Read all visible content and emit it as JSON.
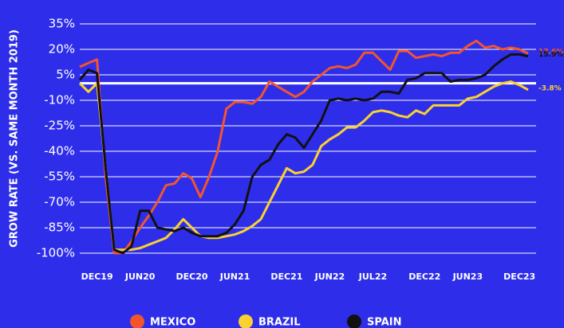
{
  "chart_data": {
    "type": "line",
    "y_label": "GROW RATE (VS. SAME MONTH 2019)",
    "categories": [
      null,
      null,
      "DEC19",
      null,
      null,
      null,
      null,
      "JUN20",
      null,
      null,
      null,
      null,
      null,
      "DEC20",
      null,
      null,
      null,
      null,
      "JUN21",
      null,
      null,
      null,
      null,
      null,
      "DEC21",
      null,
      null,
      null,
      null,
      "JUN22",
      null,
      null,
      null,
      null,
      "JUL22",
      null,
      null,
      null,
      null,
      null,
      "DEC22",
      null,
      null,
      null,
      null,
      "JUN23",
      null,
      null,
      null,
      null,
      null,
      "DEC23",
      null
    ],
    "series": [
      {
        "name": "MEXICO",
        "color": "#f2552c",
        "values": [
          9.7,
          12,
          14,
          -55,
          -100,
          -100,
          -93,
          -85,
          -78,
          -70,
          -60,
          -59,
          -53,
          -56,
          -67,
          -55,
          -40,
          -15,
          -11,
          -11,
          -12,
          -8,
          1,
          -2,
          -5,
          -8,
          -5,
          1,
          5,
          9,
          10,
          9,
          11,
          18,
          18,
          13,
          8,
          19,
          19,
          15,
          16,
          17,
          16,
          18,
          18,
          22,
          25,
          21,
          22,
          20,
          21,
          20,
          17.6
        ],
        "value_labels": [
          null,
          null,
          null,
          null,
          null,
          null,
          null,
          null,
          null,
          null,
          null,
          null,
          null,
          null,
          null,
          null,
          null,
          null,
          null,
          null,
          null,
          null,
          null,
          null,
          null,
          null,
          null,
          null,
          null,
          null,
          null,
          null,
          null,
          null,
          null,
          null,
          null,
          null,
          null,
          null,
          null,
          null,
          null,
          null,
          null,
          null,
          null,
          null,
          null,
          null,
          null,
          null,
          "17.6%"
        ]
      },
      {
        "name": "BRAZIL",
        "color": "#fbd12f",
        "values": [
          0,
          -5,
          0,
          -50,
          -98,
          -98,
          -98,
          -97,
          -95,
          -93,
          -91,
          -86,
          -80,
          -85,
          -90,
          -91,
          -91,
          -90,
          -89,
          -87,
          -84,
          -80,
          -70,
          -60,
          -50,
          -53,
          -52,
          -48,
          -37,
          -33,
          -30,
          -26,
          -26,
          -22,
          -17,
          -16,
          -17,
          -19,
          -20,
          -16,
          -18,
          -13,
          -13,
          -13,
          -13,
          -9,
          -8,
          -5,
          -2,
          0,
          1,
          -1,
          -3.8
        ],
        "value_labels": [
          null,
          null,
          null,
          null,
          null,
          null,
          null,
          null,
          null,
          null,
          null,
          null,
          null,
          null,
          null,
          null,
          null,
          null,
          null,
          null,
          null,
          null,
          null,
          null,
          null,
          null,
          null,
          null,
          null,
          null,
          null,
          null,
          null,
          null,
          null,
          null,
          null,
          null,
          null,
          null,
          null,
          null,
          null,
          null,
          null,
          null,
          null,
          null,
          null,
          null,
          null,
          null,
          "-3.8%"
        ]
      },
      {
        "name": "SPAIN",
        "color": "#111111",
        "values": [
          2,
          8,
          6,
          -50,
          -98,
          -100,
          -96,
          -75,
          -75,
          -85,
          -86,
          -87,
          -85,
          -88,
          -90,
          -90,
          -90,
          -88,
          -83,
          -75,
          -55,
          -48,
          -45,
          -36,
          -30,
          -32,
          -38,
          -30,
          -22,
          -10,
          -9,
          -10,
          -9,
          -10,
          -9,
          -5,
          -5,
          -6,
          2,
          3,
          6,
          6,
          6,
          1,
          2,
          2,
          3,
          5,
          10,
          14,
          17,
          17,
          15.9
        ],
        "value_labels": [
          null,
          null,
          null,
          null,
          null,
          null,
          null,
          null,
          null,
          null,
          null,
          null,
          null,
          null,
          null,
          null,
          null,
          null,
          null,
          null,
          null,
          null,
          null,
          null,
          null,
          null,
          null,
          null,
          null,
          null,
          null,
          null,
          null,
          null,
          null,
          null,
          null,
          null,
          null,
          null,
          null,
          null,
          null,
          null,
          null,
          null,
          null,
          null,
          null,
          null,
          null,
          null,
          "15.9%"
        ]
      }
    ],
    "ylim": [
      -100,
      35
    ],
    "yticks": [
      {
        "value": 35,
        "label": "35%"
      },
      {
        "value": 20,
        "label": "20%"
      },
      {
        "value": 5,
        "label": "5%"
      },
      {
        "value": -10,
        "label": "-10%"
      },
      {
        "value": -25,
        "label": "-25%"
      },
      {
        "value": -40,
        "label": "-40%"
      },
      {
        "value": -55,
        "label": "-55%"
      },
      {
        "value": -70,
        "label": "-70%"
      },
      {
        "value": -85,
        "label": "-85%"
      },
      {
        "value": -100,
        "label": "-100%"
      }
    ],
    "reference_line": 0,
    "grid": true,
    "legend": "bottom"
  }
}
